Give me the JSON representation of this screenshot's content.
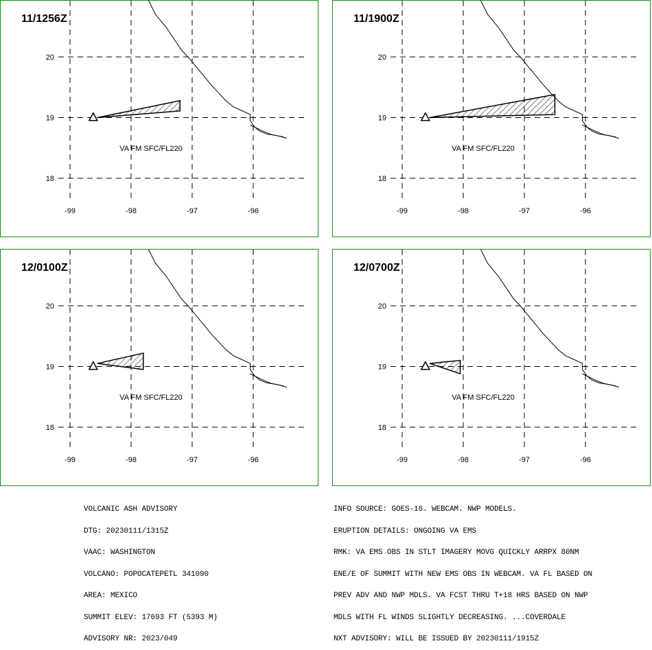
{
  "map": {
    "lat_ticks": [
      "20",
      "19",
      "18"
    ],
    "lon_ticks": [
      "-99",
      "-98",
      "-97",
      "-96"
    ],
    "volcano_marker": "triangle",
    "hatch_fill": "diagonal-lines"
  },
  "panels": [
    {
      "title": "11/1256Z",
      "label": "VA FM SFC/FL220",
      "polygon": [
        [
          -98.55,
          19.0
        ],
        [
          -97.2,
          19.28
        ],
        [
          -97.2,
          19.11
        ]
      ]
    },
    {
      "title": "11/1900Z",
      "label": "VA FM SFC/FL220",
      "polygon": [
        [
          -98.55,
          19.0
        ],
        [
          -96.5,
          19.38
        ],
        [
          -96.5,
          19.05
        ]
      ]
    },
    {
      "title": "12/0100Z",
      "label": "VA FM SFC/FL220",
      "polygon": [
        [
          -98.55,
          19.05
        ],
        [
          -97.8,
          19.22
        ],
        [
          -97.8,
          18.95
        ]
      ]
    },
    {
      "title": "12/0700Z",
      "label": "VA FM SFC/FL220",
      "polygon": [
        [
          -98.55,
          19.05
        ],
        [
          -98.05,
          19.1
        ],
        [
          -98.05,
          18.88
        ]
      ]
    }
  ],
  "advisory_left": [
    "VOLCANIC ASH ADVISORY",
    "DTG: 20230111/1315Z",
    "VAAC: WASHINGTON",
    "VOLCANO: POPOCATEPETL 341090",
    "AREA: MEXICO",
    "SUMMIT ELEV: 17693 FT (5393 M)",
    "ADVISORY NR: 2023/049"
  ],
  "advisory_right": [
    "INFO SOURCE: GOES-16. WEBCAM. NWP MODELS.",
    "ERUPTION DETAILS: ONGOING VA EMS",
    "RMK: VA EMS OBS IN STLT IMAGERY MOVG QUICKLY ARRPX 80NM",
    "ENE/E OF SUMMIT WITH NEW EMS OBS IN WEBCAM. VA FL BASED ON",
    "PREV ADV AND NWP MDLS. VA FCST THRU T+18 HRS BASED ON NWP",
    "MDLS WITH FL WINDS SLIGHTLY DECREASING. ...COVERDALE",
    "NXT ADVISORY: WILL BE ISSUED BY 20230111/1915Z"
  ],
  "colors": {
    "panel_border": "#1a8a1a",
    "lines": "#000000",
    "background": "#ffffff"
  }
}
